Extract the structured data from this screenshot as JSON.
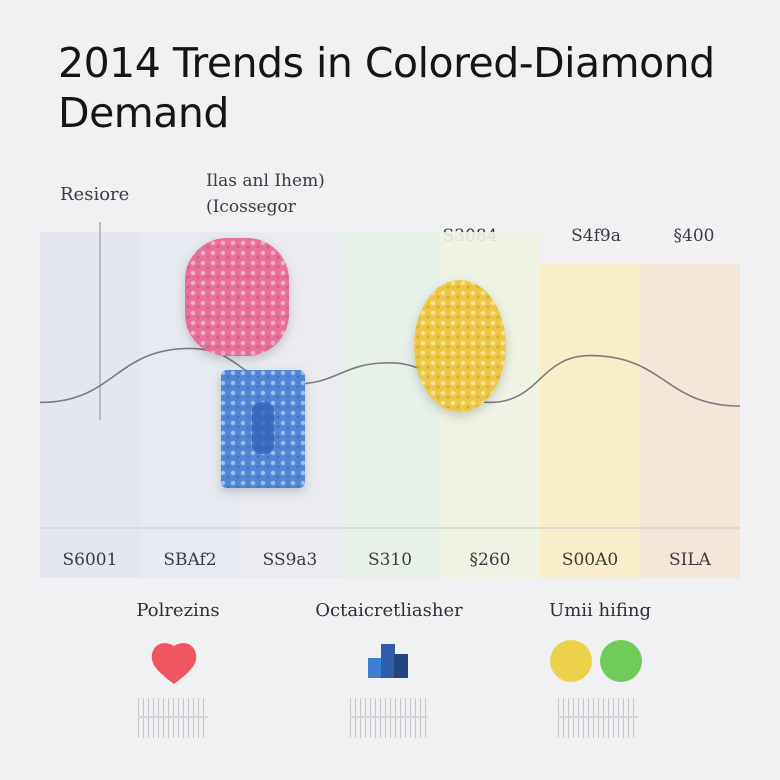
{
  "title": "2014 Trends in Colored-Diamond Demand",
  "colors": {
    "line": "#7b7b82",
    "pink": "#e8709a",
    "blue": "#4f86d6",
    "yellow": "#eec845",
    "red_dot": "#ee5560",
    "navy_icon": "#2f5ea8",
    "yellow_dot": "#ecd24a",
    "green_dot": "#6fcc58"
  },
  "chart_data": {
    "type": "line",
    "title": "2014 Trends in Colored-Diamond Demand",
    "ylabel": "Resiore",
    "annotation": "Ilas anl Ihem)\n(Icossegor",
    "categories": [
      "S6001",
      "SBAf2",
      "SS9a3",
      "S310",
      "§260",
      "S00A0",
      "SILA"
    ],
    "top_labels": [
      "S3084",
      "S4f9a",
      "§400"
    ],
    "series": [
      {
        "values": [
          0.32,
          0.62,
          0.42,
          0.54,
          0.32,
          0.58,
          0.3
        ]
      }
    ],
    "ylim": [
      0,
      1
    ],
    "grid": false,
    "legend": [
      {
        "label": "Polrezins",
        "icon": "red-drop"
      },
      {
        "label": "Octaicretliasher",
        "icon": "blue-blocks"
      },
      {
        "label": "Umii hifing",
        "icon": "yellow-green-dots"
      }
    ]
  }
}
